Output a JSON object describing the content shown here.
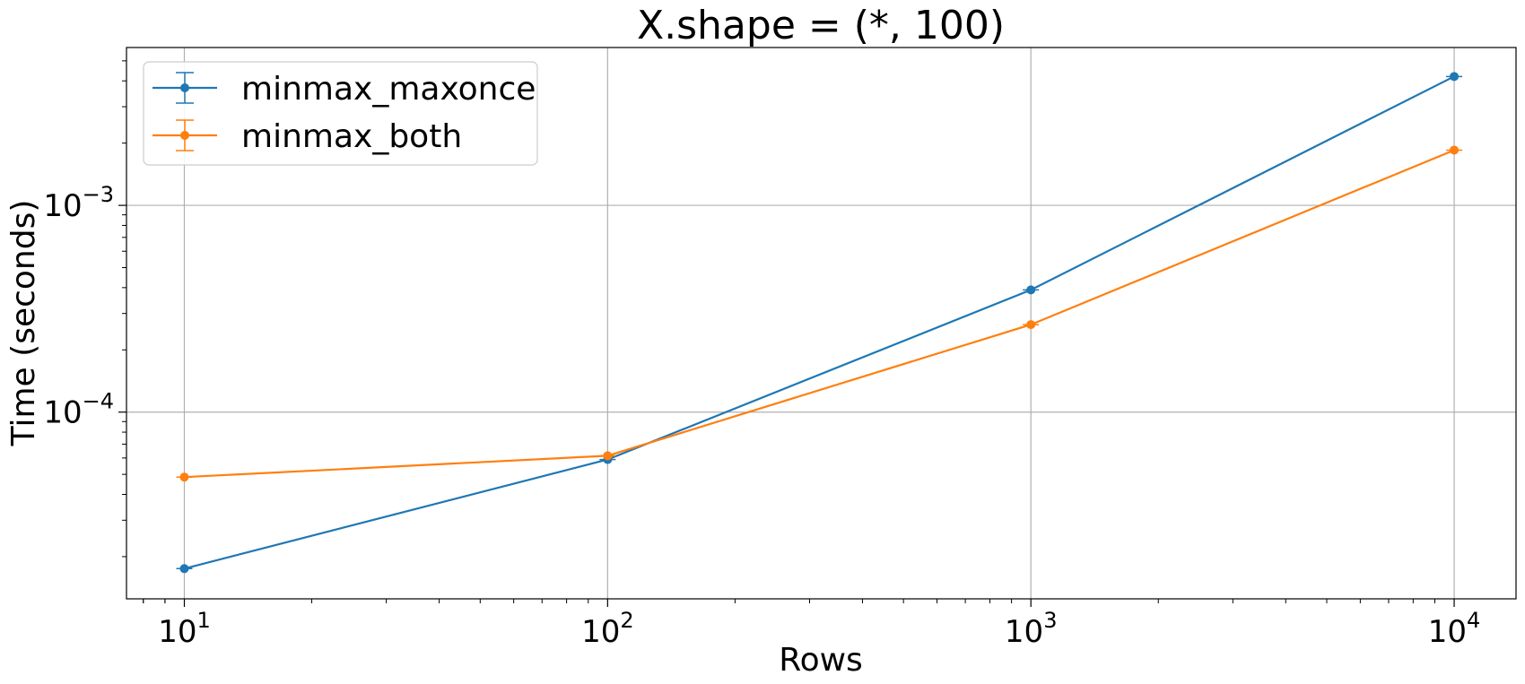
{
  "chart_data": {
    "type": "line",
    "title": "X.shape = (*, 100)",
    "xlabel": "Rows",
    "ylabel": "Time (seconds)",
    "xscale": "log",
    "yscale": "log",
    "grid": true,
    "legend_position": "top-left",
    "x": [
      10,
      100,
      1000,
      10000
    ],
    "x_ticks": [
      {
        "base": "10",
        "exp": "1"
      },
      {
        "base": "10",
        "exp": "2"
      },
      {
        "base": "10",
        "exp": "3"
      },
      {
        "base": "10",
        "exp": "4"
      }
    ],
    "y_ticks": [
      {
        "base": "10",
        "exp": "−3"
      },
      {
        "base": "10",
        "exp": "−4"
      }
    ],
    "series": [
      {
        "name": "minmax_maxonce",
        "color": "#1f77b4",
        "values": [
          1.75e-05,
          5.9e-05,
          0.00039,
          0.0042
        ]
      },
      {
        "name": "minmax_both",
        "color": "#ff7f0e",
        "values": [
          4.85e-05,
          6.15e-05,
          0.000265,
          0.00185
        ]
      }
    ]
  }
}
